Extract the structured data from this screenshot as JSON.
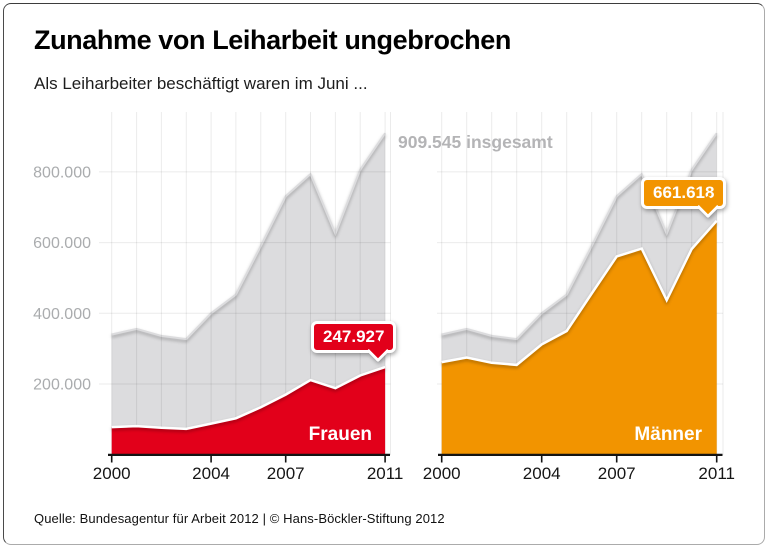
{
  "header": {
    "title": "Zunahme von Leiharbeit ungebrochen",
    "subtitle": "Als Leiharbeiter beschäftigt waren im Juni ..."
  },
  "footer": {
    "source": "Quelle: Bundesagentur für Arbeit 2012 | © Hans-Böckler-Stiftung 2012"
  },
  "colors": {
    "frauen": "#e2001a",
    "maenner": "#f29400",
    "total_area": "#dcdcde",
    "grid": "#000000",
    "axis": "#141414",
    "y_label": "#aaacae",
    "x_label": "#161616",
    "total_label": "#b4b4b6",
    "callout_text": "#ffffff"
  },
  "chart_data": {
    "type": "area",
    "title": "Zunahme von Leiharbeit ungebrochen",
    "subtitle": "Als Leiharbeiter beschäftigt waren im Juni ...",
    "x": [
      2000,
      2001,
      2002,
      2003,
      2004,
      2005,
      2006,
      2007,
      2008,
      2009,
      2010,
      2011
    ],
    "x_ticks": [
      2000,
      2004,
      2007,
      2011
    ],
    "x_tick_labels": [
      "2000",
      "2004",
      "2007",
      "2011"
    ],
    "y_ticks": [
      200000,
      400000,
      600000,
      800000
    ],
    "y_tick_labels": [
      "200.000",
      "400.000",
      "600.000",
      "800.000"
    ],
    "ylim": [
      0,
      970000
    ],
    "grid": true,
    "total_series": {
      "name": "insgesamt",
      "label": "909.545 insgesamt",
      "values": [
        340000,
        356000,
        336000,
        327000,
        400000,
        453000,
        590000,
        731000,
        794000,
        625000,
        806000,
        909545
      ]
    },
    "charts": [
      {
        "series_name": "Frauen",
        "color_key": "frauen",
        "callout": "247.927",
        "values": [
          78000,
          81000,
          76000,
          73000,
          88000,
          103000,
          134000,
          170000,
          211000,
          188000,
          224000,
          247927
        ]
      },
      {
        "series_name": "Männer",
        "color_key": "maenner",
        "callout": "661.618",
        "values": [
          262000,
          275000,
          260000,
          254000,
          312000,
          350000,
          456000,
          561000,
          583000,
          437000,
          582000,
          661618
        ]
      }
    ]
  }
}
